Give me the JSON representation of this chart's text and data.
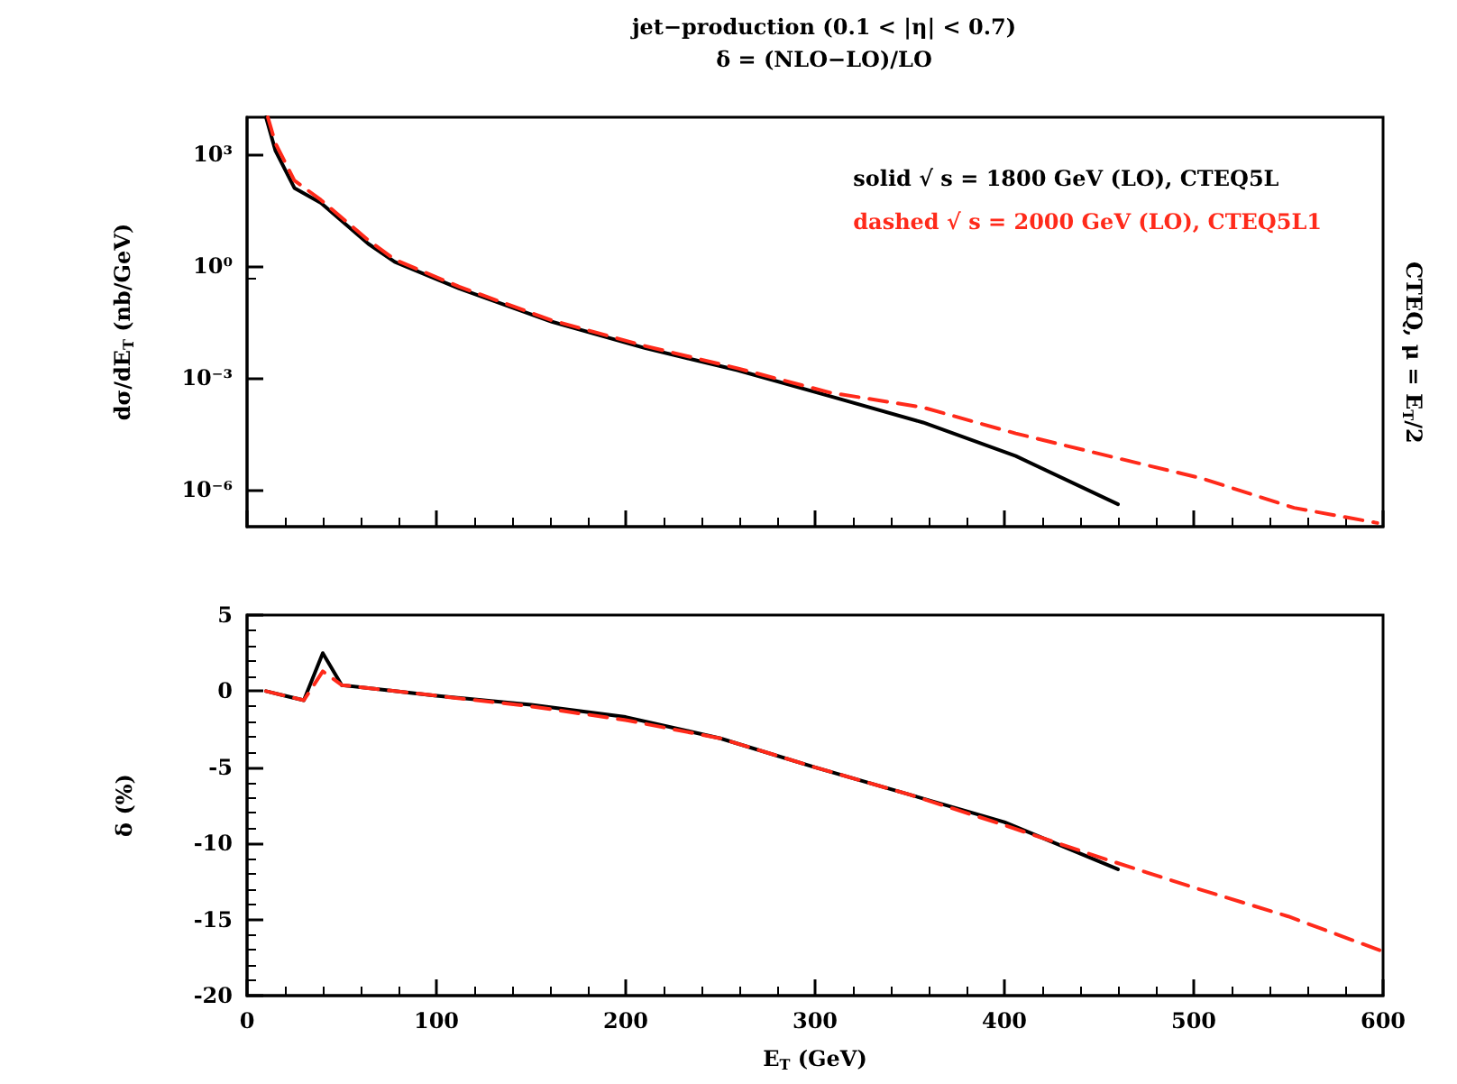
{
  "chart_data": [
    {
      "type": "line",
      "title": "jet−production (0.1 < |η| < 0.7)",
      "subtitle": "δ = (NLO−LO)/LO",
      "ylabel": "dσ/dE$_{T}$ (nb/GeV)",
      "annotations": [
        "CTEQ, μ = E$_{T}$/2"
      ],
      "log": "y",
      "xlim": [
        0,
        600
      ],
      "xticks": [
        0,
        100,
        200,
        300,
        400,
        500,
        600
      ],
      "ylim": [
        1e-07,
        10000.0
      ],
      "yticks": [
        {
          "value": 1000,
          "label": "10³"
        },
        {
          "value": 1,
          "label": "10⁰"
        },
        {
          "value": 0.001,
          "label": "10⁻³"
        },
        {
          "value": 1e-06,
          "label": "10⁻⁶"
        }
      ],
      "tick_labels": "y",
      "grid": false,
      "marker": "none",
      "legend": "top right",
      "series": [
        {
          "name": "solid √ s = 1800 GeV (LO), CTEQ5L",
          "color": "#000000",
          "line_style": "solid",
          "x": [
            10,
            15,
            25,
            39,
            64,
            78,
            112,
            161,
            210,
            259,
            308,
            357,
            406,
            460
          ],
          "values": [
            10000,
            1260,
            126,
            50,
            4,
            1.3,
            0.25,
            0.032,
            0.0063,
            0.0016,
            0.00032,
            6.3e-05,
            7.9e-06,
            4e-07
          ]
        },
        {
          "name": "dashed √ s = 2000 GeV (LO), CTEQ5L1",
          "color": "#ff2a1a",
          "line_style": "dashed",
          "x": [
            11,
            15,
            25,
            39,
            64,
            78,
            112,
            161,
            210,
            259,
            308,
            357,
            406,
            455,
            504,
            553,
            597
          ],
          "values": [
            10000,
            2000,
            200,
            60,
            5,
            1.5,
            0.28,
            0.035,
            0.0072,
            0.0018,
            0.0004,
            0.00016,
            3.2e-05,
            7.9e-06,
            2e-06,
            3.2e-07,
            1.26e-07
          ]
        }
      ]
    },
    {
      "type": "line",
      "xlabel": "E$_{T}$ (GeV)",
      "ylabel": "δ (%)",
      "xlim": [
        0,
        600
      ],
      "xticks": [
        0,
        100,
        200,
        300,
        400,
        500,
        600
      ],
      "ylim": [
        -20,
        5
      ],
      "yticks": [
        -20,
        -15,
        -10,
        -5,
        0,
        5
      ],
      "grid": false,
      "marker": "none",
      "series": [
        {
          "color": "#000000",
          "line_style": "solid",
          "x": [
            10,
            20,
            30,
            40,
            50,
            100,
            150,
            200,
            250,
            300,
            350,
            400,
            460
          ],
          "values": [
            0,
            -0.3,
            -0.6,
            2.5,
            0.4,
            -0.3,
            -0.9,
            -1.7,
            -3.1,
            -5,
            -6.8,
            -8.6,
            -11.7
          ]
        },
        {
          "color": "#ff2a1a",
          "line_style": "dashed",
          "x": [
            10,
            20,
            30,
            40,
            50,
            100,
            150,
            200,
            250,
            300,
            350,
            400,
            450,
            500,
            550,
            600
          ],
          "values": [
            0,
            -0.3,
            -0.6,
            1.3,
            0.4,
            -0.3,
            -1.0,
            -1.9,
            -3.1,
            -5,
            -6.8,
            -8.8,
            -10.9,
            -12.9,
            -14.8,
            -17.1
          ]
        }
      ]
    }
  ]
}
